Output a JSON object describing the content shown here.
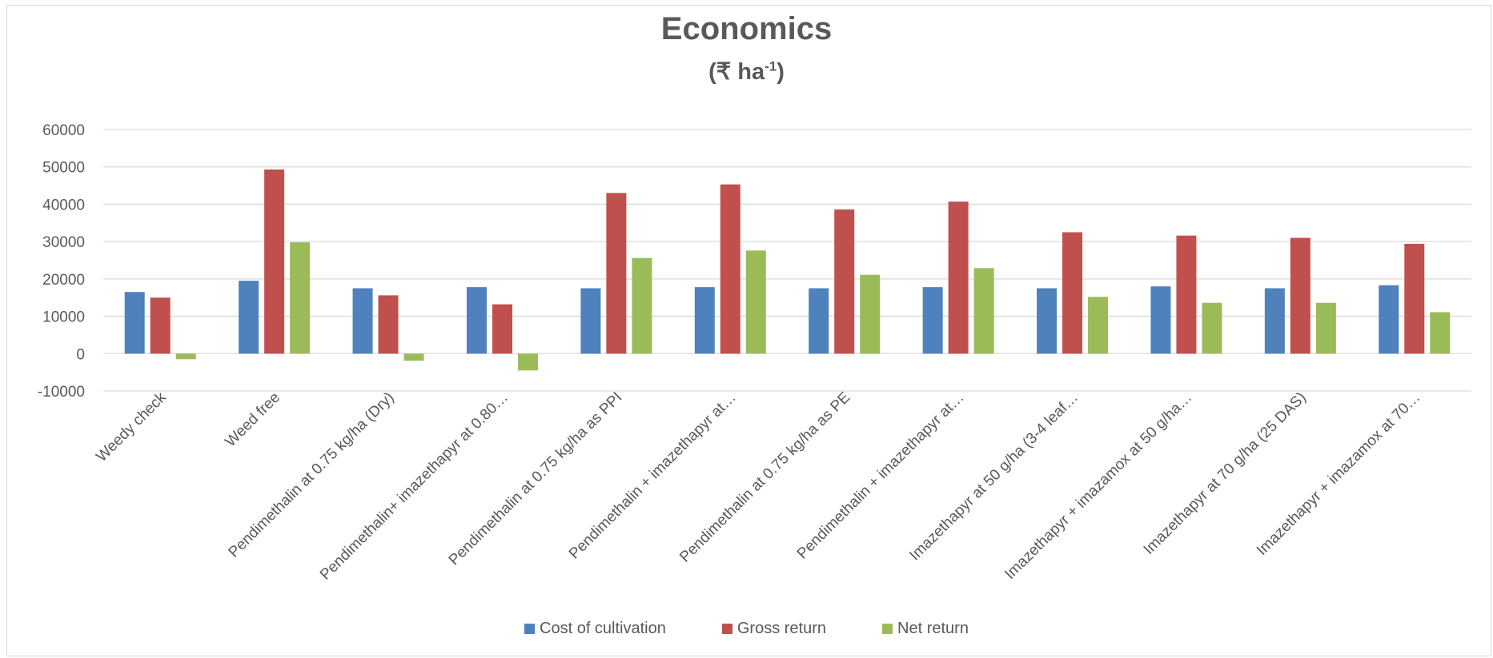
{
  "chart_data": {
    "type": "bar",
    "title": "Economics",
    "subtitle": {
      "prefix": "(₹ ha",
      "sup": "-1",
      "suffix": ")"
    },
    "xlabel": "",
    "ylabel": "",
    "ylim": [
      -10000,
      60000
    ],
    "yticks": [
      -10000,
      0,
      10000,
      20000,
      30000,
      40000,
      50000,
      60000
    ],
    "grid": true,
    "legend_position": "bottom",
    "categories": [
      "Weedy check",
      "Weed free",
      "Pendimethalin at 0.75 kg/ha (Dry)",
      "Pendimethalin+ imazethapyr at 0.80…",
      "Pendimethalin at 0.75 kg/ha as PPI",
      "Pendimethalin + imazethapyr at…",
      "Pendimethalin at 0.75 kg/ha as PE",
      "Pendimethalin + imazethapyr at…",
      "Imazethapyr at 50 g/ha (3-4 leaf…",
      "Imazethapyr + imazamox at 50 g/ha…",
      "Imazethapyr at 70 g/ha (25 DAS)",
      "Imazethapyr + imazamox at 70…"
    ],
    "series": [
      {
        "name": "Cost of cultivation",
        "color": "#4f81bd",
        "values": [
          16500,
          19500,
          17500,
          17800,
          17500,
          17800,
          17500,
          17800,
          17500,
          18000,
          17500,
          18300
        ]
      },
      {
        "name": "Gross return",
        "color": "#c0504d",
        "values": [
          15000,
          49300,
          15600,
          13200,
          43000,
          45300,
          38600,
          40700,
          32500,
          31600,
          31000,
          29400
        ]
      },
      {
        "name": "Net return",
        "color": "#9bbb59",
        "values": [
          -1500,
          29800,
          -1900,
          -4500,
          25600,
          27600,
          21100,
          22900,
          15200,
          13600,
          13600,
          11100
        ]
      }
    ]
  }
}
